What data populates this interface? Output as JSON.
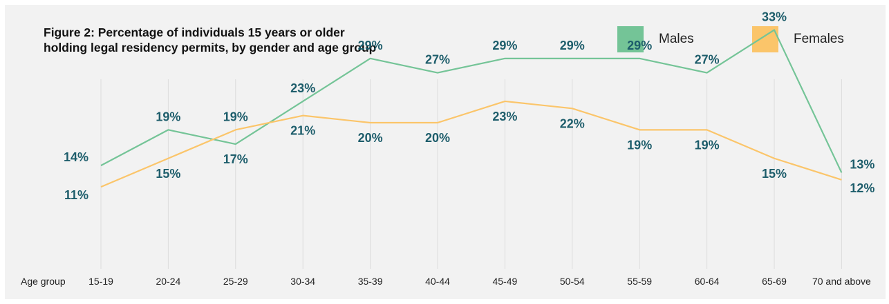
{
  "title_lines": [
    "Figure 2: Percentage of individuals 15 years or older",
    "holding legal residency permits, by gender and age group"
  ],
  "colors": {
    "males": "#74c497",
    "females": "#fbc56a",
    "label": "#1d5d6b",
    "grid": "#dcdcdc"
  },
  "chart_data": {
    "type": "line",
    "title": "Figure 2: Percentage of individuals 15 years or older holding legal residency permits, by gender and age group",
    "xlabel": "Age group",
    "ylabel": "",
    "categories": [
      "15-19",
      "20-24",
      "25-29",
      "30-34",
      "35-39",
      "40-44",
      "45-49",
      "50-54",
      "55-59",
      "60-64",
      "65-69",
      "70 and above"
    ],
    "series": [
      {
        "name": "Males",
        "values": [
          14,
          19,
          17,
          23,
          29,
          27,
          29,
          29,
          29,
          27,
          33,
          13
        ],
        "labels": [
          "14%",
          "19%",
          "17%",
          "23%",
          "29%",
          "27%",
          "29%",
          "29%",
          "29%",
          "27%",
          "33%",
          "13%"
        ]
      },
      {
        "name": "Females",
        "values": [
          11,
          15,
          19,
          21,
          20,
          20,
          23,
          22,
          19,
          19,
          15,
          12
        ],
        "labels": [
          "11%",
          "15%",
          "19%",
          "21%",
          "20%",
          "20%",
          "23%",
          "22%",
          "19%",
          "19%",
          "15%",
          "12%"
        ]
      }
    ],
    "grid": true,
    "legend": "top-right",
    "ylim": [
      0,
      36
    ]
  }
}
